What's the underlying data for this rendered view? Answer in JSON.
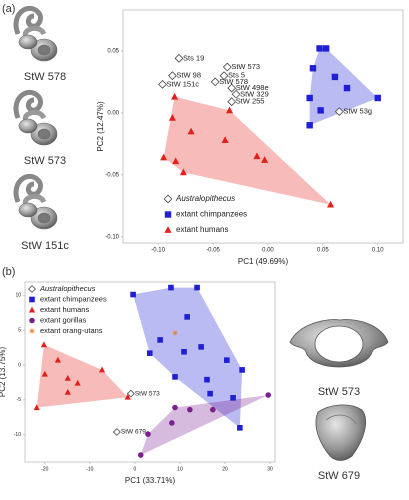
{
  "figure": {
    "panel_labels": [
      "(a)",
      "(b)"
    ],
    "specimens_a": [
      "StW 578",
      "StW 573",
      "StW 151c"
    ],
    "specimens_b": [
      "StW 573",
      "StW 679"
    ]
  },
  "chart_data": [
    {
      "type": "scatter",
      "xlabel": "PC1 (49.69%)",
      "ylabel": "PC2 (12.47%)",
      "xlim": [
        -0.132,
        0.123
      ],
      "ylim": [
        -0.105,
        0.083
      ],
      "xticks": [
        {
          "value": -0.1,
          "label": "-0.10"
        },
        -0.05,
        {
          "value": 0,
          "label": "0.00"
        },
        0.05,
        {
          "value": 0.1,
          "label": "0.10"
        }
      ],
      "yticks": [
        0.05,
        {
          "value": 0,
          "label": "0.00"
        },
        -0.05,
        {
          "value": -0.1,
          "label": "-0.10"
        }
      ],
      "series": [
        {
          "name": "Australopithecus",
          "color": "#444444",
          "marker": "diamond",
          "hull": false,
          "labels": [
            "Sts 19",
            "StW 573",
            "Sts 5",
            "StW 98",
            "StW 578",
            "StW 151c",
            "StW 498e",
            "StW 329",
            "StW 255",
            "StW 53g"
          ],
          "x": [
            -0.081,
            -0.037,
            -0.04,
            -0.087,
            -0.048,
            -0.096,
            -0.033,
            -0.029,
            -0.033,
            0.065
          ],
          "values": [
            0.044,
            0.037,
            0.03,
            0.03,
            0.025,
            0.023,
            0.02,
            0.015,
            0.009,
            0.001
          ]
        },
        {
          "name": "extant chimpanzees",
          "color": "#1f1fd6",
          "marker": "square",
          "hull": true,
          "x": [
            0.047,
            0.053,
            0.041,
            0.061,
            0.072,
            0.1,
            0.038,
            0.048,
            0.038
          ],
          "values": [
            0.052,
            0.052,
            0.036,
            0.029,
            0.02,
            0.012,
            0.012,
            0.002,
            -0.01
          ]
        },
        {
          "name": "extant humans",
          "color": "#e3201c",
          "marker": "triangle",
          "hull": true,
          "x": [
            -0.085,
            -0.035,
            -0.087,
            -0.07,
            -0.039,
            -0.095,
            -0.084,
            -0.077,
            -0.01,
            -0.003,
            0.057
          ],
          "values": [
            0.013,
            0.002,
            -0.004,
            -0.015,
            -0.022,
            -0.036,
            -0.039,
            -0.048,
            -0.035,
            -0.038,
            -0.074
          ]
        }
      ]
    },
    {
      "type": "scatter",
      "xlabel": "PC1 (33.71%)",
      "ylabel": "PC2 (13.75%)",
      "xlim": [
        -24.4,
        31.1
      ],
      "ylim": [
        -13.9,
        11.9
      ],
      "xticks": [
        -20,
        -10,
        0,
        10,
        20,
        30
      ],
      "yticks": [
        10,
        5,
        0,
        -5,
        -10
      ],
      "series": [
        {
          "name": "Australopithecus",
          "color": "#444444",
          "marker": "diamond",
          "hull": false,
          "labels": [
            "StW 573",
            "StW 679"
          ],
          "x": [
            -0.9,
            -4.0
          ],
          "values": [
            -4.1,
            -9.6
          ]
        },
        {
          "name": "extant chimpanzees",
          "color": "#1f1fd6",
          "marker": "square",
          "hull": true,
          "x": [
            8.0,
            13.8,
            -0.4,
            11.6,
            5.6,
            14.7,
            3.3,
            10.9,
            20.4,
            23.8,
            8.9,
            16.0,
            16.7,
            21.8,
            23.3
          ],
          "values": [
            11.1,
            11.1,
            10.1,
            6.9,
            3.6,
            2.6,
            1.7,
            1.9,
            0.7,
            -0.7,
            -1.7,
            -2.1,
            -4.1,
            -4.7,
            -9.0
          ]
        },
        {
          "name": "extant humans",
          "color": "#e3201c",
          "marker": "triangle",
          "hull": true,
          "x": [
            -20.2,
            -17.1,
            -20.0,
            -14.9,
            -12.7,
            -21.8,
            -14.9,
            -7.3,
            -1.6
          ],
          "values": [
            2.9,
            0.7,
            -1.3,
            -1.9,
            -2.6,
            -6.1,
            -3.9,
            -0.7,
            -4.6
          ]
        },
        {
          "name": "extant gorillas",
          "color": "#7b1f91",
          "marker": "circle",
          "hull": true,
          "x": [
            29.6,
            17.3,
            12.2,
            8.9,
            8.2,
            2.9,
            1.3
          ],
          "values": [
            -4.3,
            -6.4,
            -6.4,
            -6.1,
            -8.3,
            -9.9,
            -12.9
          ]
        },
        {
          "name": "extant orang-utans",
          "color": "#e8893a",
          "marker": "star",
          "hull": false,
          "x": [
            8.9
          ],
          "values": [
            4.6
          ]
        }
      ]
    }
  ]
}
